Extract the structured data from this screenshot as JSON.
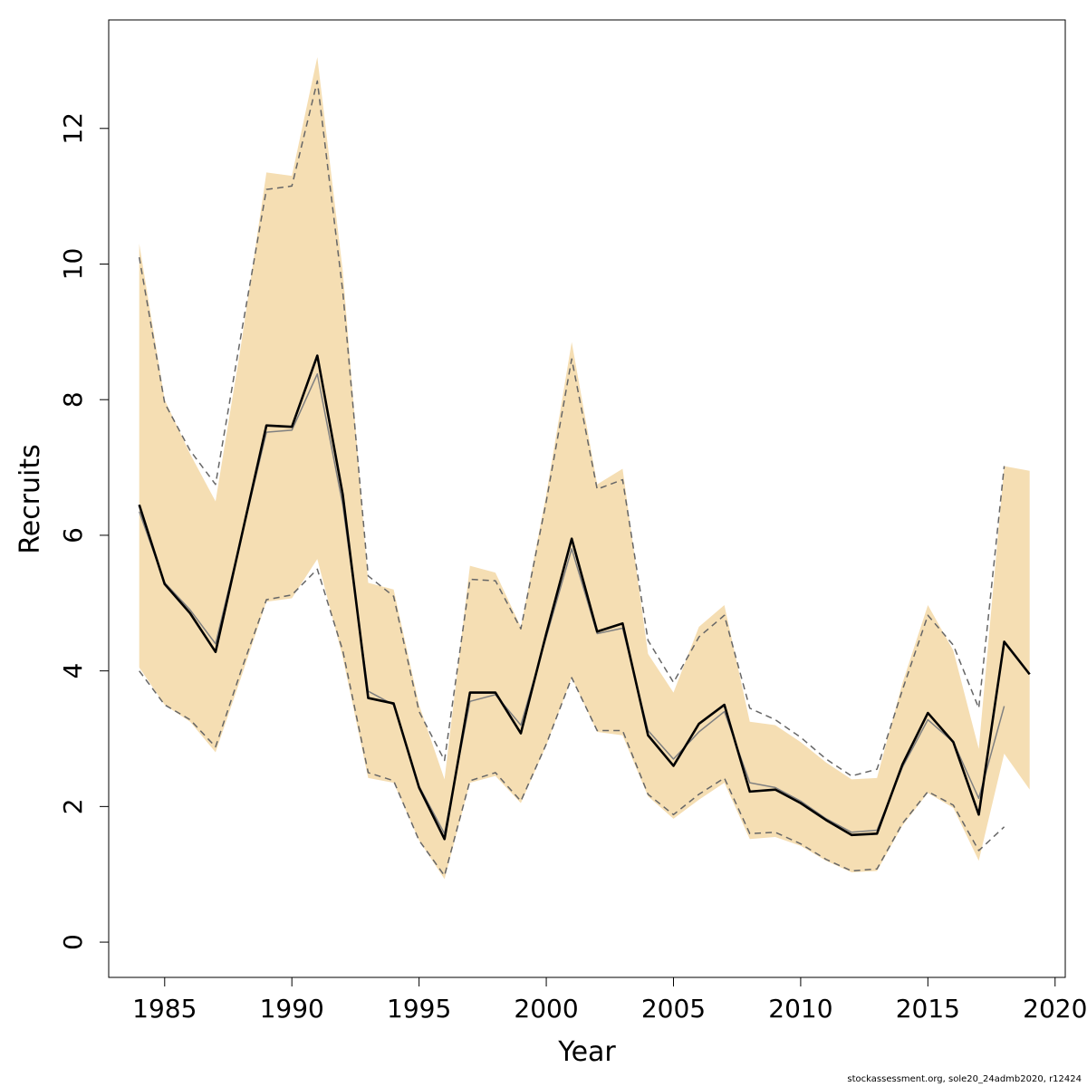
{
  "chart_data": {
    "type": "line",
    "xlabel": "Year",
    "ylabel": "Recruits",
    "xlim": [
      1982.8,
      2020.4
    ],
    "ylim": [
      -0.52,
      13.6
    ],
    "x_ticks": [
      1985,
      1990,
      1995,
      2000,
      2005,
      2010,
      2015,
      2020
    ],
    "y_ticks": [
      0,
      2,
      4,
      6,
      8,
      10,
      12
    ],
    "grid": false,
    "band_color": "#F5DEB3",
    "years": [
      1984,
      1985,
      1986,
      1987,
      1988,
      1989,
      1990,
      1991,
      1992,
      1993,
      1994,
      1995,
      1996,
      1997,
      1998,
      1999,
      2000,
      2001,
      2002,
      2003,
      2004,
      2005,
      2006,
      2007,
      2008,
      2009,
      2010,
      2011,
      2012,
      2013,
      2014,
      2015,
      2016,
      2017,
      2018,
      2019
    ],
    "band_upper": [
      10.3,
      8.0,
      7.2,
      6.5,
      8.8,
      11.35,
      11.3,
      13.05,
      9.9,
      5.3,
      5.2,
      3.5,
      2.4,
      5.55,
      5.45,
      4.65,
      6.6,
      8.85,
      6.75,
      6.98,
      4.25,
      3.68,
      4.65,
      4.97,
      3.25,
      3.2,
      2.95,
      2.65,
      2.4,
      2.42,
      3.82,
      4.97,
      4.3,
      2.85,
      7.02,
      6.95
    ],
    "band_lower": [
      4.05,
      3.5,
      3.25,
      2.8,
      3.9,
      5.02,
      5.07,
      5.65,
      4.2,
      2.42,
      2.35,
      1.5,
      0.93,
      2.35,
      2.45,
      2.05,
      2.9,
      3.9,
      3.1,
      3.05,
      2.15,
      1.82,
      2.1,
      2.35,
      1.52,
      1.55,
      1.42,
      1.2,
      1.03,
      1.05,
      1.72,
      2.2,
      1.98,
      1.2,
      2.78,
      2.25
    ],
    "series": [
      {
        "name": "",
        "color": "#000000",
        "style": "solid-thick",
        "values": [
          6.45,
          5.28,
          4.85,
          4.28,
          5.95,
          7.62,
          7.6,
          8.65,
          6.6,
          3.6,
          3.52,
          2.28,
          1.52,
          3.68,
          3.68,
          3.08,
          4.55,
          5.95,
          4.58,
          4.7,
          3.05,
          2.6,
          3.22,
          3.5,
          2.22,
          2.25,
          2.05,
          1.8,
          1.58,
          1.6,
          2.62,
          3.38,
          2.95,
          1.88,
          4.43,
          3.95
        ]
      },
      {
        "name": "",
        "color": "#808080",
        "style": "solid-thin",
        "values": [
          6.35,
          5.3,
          4.9,
          4.4,
          5.95,
          7.52,
          7.55,
          8.38,
          6.45,
          3.7,
          3.5,
          2.3,
          1.6,
          3.55,
          3.65,
          3.2,
          4.5,
          5.8,
          4.55,
          4.63,
          3.12,
          2.7,
          3.1,
          3.4,
          2.35,
          2.28,
          2.08,
          1.82,
          1.62,
          1.65,
          2.58,
          3.28,
          2.95,
          2.12,
          3.48,
          null
        ]
      },
      {
        "name": "",
        "color": "#666666",
        "style": "dashed",
        "role": "upper",
        "values": [
          10.1,
          7.95,
          7.25,
          6.75,
          8.95,
          11.1,
          11.15,
          12.7,
          9.6,
          5.4,
          5.1,
          3.4,
          2.68,
          5.35,
          5.33,
          4.62,
          6.5,
          8.6,
          6.68,
          6.82,
          4.45,
          3.83,
          4.5,
          4.82,
          3.45,
          3.28,
          3.02,
          2.7,
          2.45,
          2.55,
          3.72,
          4.82,
          4.38,
          3.45,
          7.02,
          null
        ]
      },
      {
        "name": "",
        "color": "#666666",
        "style": "dashed",
        "role": "lower",
        "values": [
          4.0,
          3.5,
          3.28,
          2.88,
          4.0,
          5.05,
          5.12,
          5.5,
          4.3,
          2.5,
          2.38,
          1.5,
          0.98,
          2.38,
          2.5,
          2.08,
          2.92,
          3.9,
          3.12,
          3.12,
          2.18,
          1.88,
          2.18,
          2.42,
          1.6,
          1.62,
          1.45,
          1.22,
          1.05,
          1.08,
          1.75,
          2.22,
          2.02,
          1.35,
          1.7,
          null
        ]
      }
    ]
  },
  "footer_text": "stockassessment.org, sole20_24admb2020, r12424"
}
